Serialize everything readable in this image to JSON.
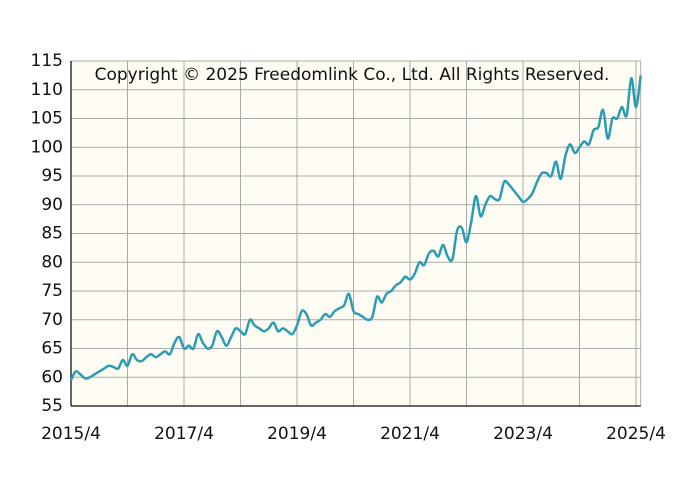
{
  "chart_data": {
    "type": "line",
    "annotation": "Copyright © 2025 Freedomlink Co., Ltd. All Rights Reserved.",
    "x": [
      "2015/4",
      "2015/5",
      "2015/6",
      "2015/7",
      "2015/8",
      "2015/9",
      "2015/10",
      "2015/11",
      "2015/12",
      "2016/1",
      "2016/2",
      "2016/3",
      "2016/4",
      "2016/5",
      "2016/6",
      "2016/7",
      "2016/8",
      "2016/9",
      "2016/10",
      "2016/11",
      "2016/12",
      "2017/1",
      "2017/2",
      "2017/3",
      "2017/4",
      "2017/5",
      "2017/6",
      "2017/7",
      "2017/8",
      "2017/9",
      "2017/10",
      "2017/11",
      "2017/12",
      "2018/1",
      "2018/2",
      "2018/3",
      "2018/4",
      "2018/5",
      "2018/6",
      "2018/7",
      "2018/8",
      "2018/9",
      "2018/10",
      "2018/11",
      "2018/12",
      "2019/1",
      "2019/2",
      "2019/3",
      "2019/4",
      "2019/5",
      "2019/6",
      "2019/7",
      "2019/8",
      "2019/9",
      "2019/10",
      "2019/11",
      "2019/12",
      "2020/1",
      "2020/2",
      "2020/3",
      "2020/4",
      "2020/5",
      "2020/6",
      "2020/7",
      "2020/8",
      "2020/9",
      "2020/10",
      "2020/11",
      "2020/12",
      "2021/1",
      "2021/2",
      "2021/3",
      "2021/4",
      "2021/5",
      "2021/6",
      "2021/7",
      "2021/8",
      "2021/9",
      "2021/10",
      "2021/11",
      "2021/12",
      "2022/1",
      "2022/2",
      "2022/3",
      "2022/4",
      "2022/5",
      "2022/6",
      "2022/7",
      "2022/8",
      "2022/9",
      "2022/10",
      "2022/11",
      "2022/12",
      "2023/1",
      "2023/2",
      "2023/3",
      "2023/4",
      "2023/5",
      "2023/6",
      "2023/7",
      "2023/8",
      "2023/9",
      "2023/10",
      "2023/11",
      "2023/12",
      "2024/1",
      "2024/2",
      "2024/3",
      "2024/4",
      "2024/5",
      "2024/6",
      "2024/7",
      "2024/8",
      "2024/9",
      "2024/10",
      "2024/11",
      "2024/12",
      "2025/1",
      "2025/2",
      "2025/3",
      "2025/4",
      "2025/5"
    ],
    "series": [
      {
        "color": "#2a9db5",
        "values": [
          59.5,
          61,
          60.5,
          59.8,
          60,
          60.5,
          61,
          61.5,
          62,
          61.8,
          61.5,
          63,
          62,
          64,
          63,
          62.8,
          63.5,
          64,
          63.5,
          64,
          64.5,
          64,
          66,
          67,
          65,
          65.5,
          65,
          67.5,
          66,
          65,
          65.5,
          68,
          67,
          65.5,
          67,
          68.5,
          68,
          67.5,
          70,
          69,
          68.5,
          68,
          68.5,
          69.5,
          68,
          68.5,
          68,
          67.5,
          69,
          71.5,
          71,
          69,
          69.5,
          70,
          71,
          70.5,
          71.5,
          72,
          72.5,
          74.5,
          71.5,
          71,
          70.5,
          70,
          70.5,
          74,
          73,
          74.5,
          75,
          76,
          76.5,
          77.5,
          77,
          78,
          80,
          79.5,
          81.5,
          82,
          81,
          83,
          81,
          80.5,
          85.5,
          86,
          83.5,
          87,
          91.5,
          88,
          90,
          91.5,
          91,
          91,
          94,
          93.5,
          92.5,
          91.5,
          90.5,
          91,
          92,
          94,
          95.5,
          95.5,
          95,
          97.5,
          94.5,
          98.5,
          100.5,
          99,
          100,
          101,
          100.5,
          103,
          103.5,
          106.5,
          101.5,
          105,
          105,
          107,
          105.5,
          112,
          107,
          112.5
        ]
      }
    ],
    "xticks": [
      "2015/4",
      "2016/4",
      "2017/4",
      "2018/4",
      "2019/4",
      "2020/4",
      "2021/4",
      "2022/4",
      "2023/4",
      "2024/4",
      "2025/4"
    ],
    "xtick_label_step": 2,
    "ylim": [
      55,
      115
    ],
    "yticks": [
      55,
      60,
      65,
      70,
      75,
      80,
      85,
      90,
      95,
      100,
      105,
      110,
      115
    ],
    "grid": true
  }
}
